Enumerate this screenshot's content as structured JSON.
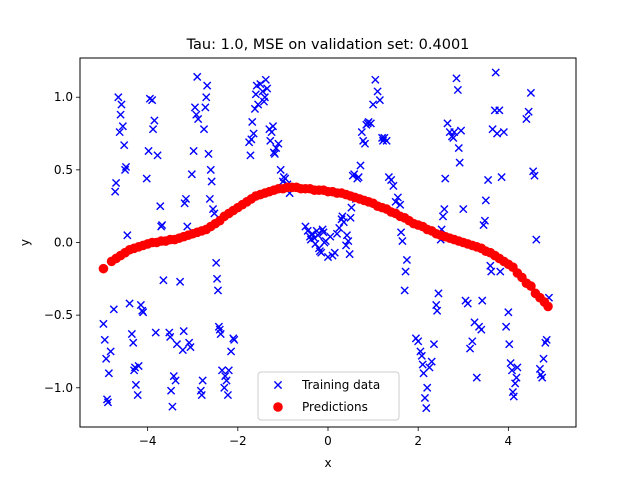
{
  "chart_data": {
    "type": "scatter",
    "title": "Tau: 1.0, MSE on validation set: 0.4001",
    "xlabel": "x",
    "ylabel": "y",
    "xlim": [
      -5.5,
      5.5
    ],
    "ylim": [
      -1.27,
      1.27
    ],
    "xticks": [
      -4,
      -2,
      0,
      2,
      4
    ],
    "xtick_labels": [
      "−4",
      "−2",
      "0",
      "2",
      "4"
    ],
    "yticks": [
      -1.0,
      -0.5,
      0.0,
      0.5,
      1.0
    ],
    "ytick_labels": [
      "−1.0",
      "−0.5",
      "0.0",
      "0.5",
      "1.0"
    ],
    "grid": false,
    "legend_position": "lower-center",
    "series": [
      {
        "name": "Training data",
        "marker": "x",
        "color": "#0000ff",
        "points": [
          [
            -4.98,
            -0.56
          ],
          [
            -4.95,
            -0.67
          ],
          [
            -4.92,
            -0.8
          ],
          [
            -4.9,
            -1.08
          ],
          [
            -4.88,
            -1.1
          ],
          [
            -4.86,
            -0.9
          ],
          [
            -4.82,
            -0.75
          ],
          [
            -4.75,
            -0.46
          ],
          [
            -4.72,
            0.35
          ],
          [
            -4.7,
            0.41
          ],
          [
            -4.65,
            1.0
          ],
          [
            -4.62,
            0.76
          ],
          [
            -4.6,
            0.88
          ],
          [
            -4.58,
            0.95
          ],
          [
            -4.55,
            0.8
          ],
          [
            -4.52,
            0.67
          ],
          [
            -4.5,
            0.5
          ],
          [
            -4.48,
            0.52
          ],
          [
            -4.45,
            0.05
          ],
          [
            -4.4,
            -0.42
          ],
          [
            -4.35,
            -0.63
          ],
          [
            -4.32,
            -0.69
          ],
          [
            -4.3,
            -0.88
          ],
          [
            -4.28,
            -0.86
          ],
          [
            -4.26,
            -0.98
          ],
          [
            -4.22,
            -1.05
          ],
          [
            -4.2,
            -0.85
          ],
          [
            -4.15,
            -0.43
          ],
          [
            -4.12,
            -0.47
          ],
          [
            -4.1,
            -0.48
          ],
          [
            -4.02,
            0.44
          ],
          [
            -3.98,
            0.63
          ],
          [
            -3.95,
            0.99
          ],
          [
            -3.9,
            0.98
          ],
          [
            -3.88,
            0.78
          ],
          [
            -3.85,
            0.84
          ],
          [
            -3.82,
            -0.62
          ],
          [
            -3.78,
            0.6
          ],
          [
            -3.72,
            0.25
          ],
          [
            -3.7,
            0.11
          ],
          [
            -3.68,
            0.12
          ],
          [
            -3.65,
            -0.26
          ],
          [
            -3.52,
            -0.62
          ],
          [
            -3.5,
            -0.65
          ],
          [
            -3.48,
            -1.02
          ],
          [
            -3.45,
            -1.13
          ],
          [
            -3.42,
            -0.92
          ],
          [
            -3.38,
            -0.95
          ],
          [
            -3.35,
            -0.7
          ],
          [
            -3.28,
            -0.27
          ],
          [
            -3.22,
            -0.74
          ],
          [
            -3.2,
            -0.61
          ],
          [
            -3.18,
            0.27
          ],
          [
            -3.15,
            0.3
          ],
          [
            -3.12,
            0.11
          ],
          [
            -3.08,
            -0.69
          ],
          [
            -3.05,
            -0.72
          ],
          [
            -3.02,
            0.47
          ],
          [
            -2.98,
            0.63
          ],
          [
            -2.95,
            0.93
          ],
          [
            -2.92,
            0.88
          ],
          [
            -2.9,
            1.14
          ],
          [
            -2.88,
            0.85
          ],
          [
            -2.82,
            -1.02
          ],
          [
            -2.8,
            -1.05
          ],
          [
            -2.78,
            -0.95
          ],
          [
            -2.75,
            0.78
          ],
          [
            -2.72,
            0.93
          ],
          [
            -2.7,
            1.0
          ],
          [
            -2.68,
            1.08
          ],
          [
            -2.65,
            0.61
          ],
          [
            -2.62,
            0.3
          ],
          [
            -2.6,
            0.5
          ],
          [
            -2.58,
            0.42
          ],
          [
            -2.55,
            0.23
          ],
          [
            -2.52,
            0.2
          ],
          [
            -2.48,
            -0.14
          ],
          [
            -2.46,
            -0.25
          ],
          [
            -2.44,
            -0.33
          ],
          [
            -2.42,
            -0.58
          ],
          [
            -2.4,
            -0.6
          ],
          [
            -2.38,
            -0.63
          ],
          [
            -2.35,
            -0.88
          ],
          [
            -2.3,
            -1.0
          ],
          [
            -2.28,
            -0.92
          ],
          [
            -2.25,
            -0.95
          ],
          [
            -2.22,
            -1.05
          ],
          [
            -2.2,
            -0.88
          ],
          [
            -2.15,
            -0.75
          ],
          [
            -2.1,
            -0.66
          ],
          [
            -2.08,
            -0.67
          ],
          [
            -1.75,
            0.69
          ],
          [
            -1.72,
            0.6
          ],
          [
            -1.7,
            0.71
          ],
          [
            -1.68,
            0.83
          ],
          [
            -1.65,
            0.75
          ],
          [
            -1.62,
            0.92
          ],
          [
            -1.6,
            1.02
          ],
          [
            -1.58,
            1.08
          ],
          [
            -1.55,
            0.95
          ],
          [
            -1.5,
            1.09
          ],
          [
            -1.45,
            1.04
          ],
          [
            -1.42,
            0.97
          ],
          [
            -1.4,
            1.0
          ],
          [
            -1.38,
            1.12
          ],
          [
            -1.35,
            1.06
          ],
          [
            -1.3,
            0.78
          ],
          [
            -1.28,
            0.7
          ],
          [
            -1.25,
            0.76
          ],
          [
            -1.22,
            0.8
          ],
          [
            -1.2,
            0.62
          ],
          [
            -1.18,
            0.61
          ],
          [
            -1.15,
            0.65
          ],
          [
            -1.1,
            0.68
          ],
          [
            -1.05,
            0.5
          ],
          [
            -1.0,
            0.42
          ],
          [
            -0.98,
            0.45
          ],
          [
            -0.95,
            0.44
          ],
          [
            -0.9,
            0.4
          ],
          [
            -0.85,
            0.34
          ],
          [
            -0.5,
            0.11
          ],
          [
            -0.45,
            0.08
          ],
          [
            -0.4,
            0.04
          ],
          [
            -0.38,
            0.02
          ],
          [
            -0.35,
            0.06
          ],
          [
            -0.3,
            0.03
          ],
          [
            -0.28,
            -0.01
          ],
          [
            -0.25,
            0.08
          ],
          [
            -0.22,
            0.05
          ],
          [
            -0.2,
            -0.04
          ],
          [
            -0.18,
            -0.06
          ],
          [
            -0.15,
            -0.07
          ],
          [
            -0.12,
            0.09
          ],
          [
            -0.1,
            0.07
          ],
          [
            -0.08,
            0.0
          ],
          [
            -0.05,
            0.01
          ],
          [
            0.0,
            -0.1
          ],
          [
            0.05,
            0.04
          ],
          [
            0.1,
            -0.09
          ],
          [
            0.15,
            -0.07
          ],
          [
            0.2,
            0.06
          ],
          [
            0.25,
            0.1
          ],
          [
            0.3,
            0.16
          ],
          [
            0.32,
            0.18
          ],
          [
            0.35,
            0.14
          ],
          [
            0.4,
            -0.02
          ],
          [
            0.42,
            0.05
          ],
          [
            0.45,
            0.01
          ],
          [
            0.48,
            -0.08
          ],
          [
            0.5,
            0.17
          ],
          [
            0.52,
            0.24
          ],
          [
            0.55,
            0.46
          ],
          [
            0.58,
            0.47
          ],
          [
            0.62,
            0.3
          ],
          [
            0.65,
            0.44
          ],
          [
            0.68,
            0.45
          ],
          [
            0.72,
            0.53
          ],
          [
            0.75,
            0.76
          ],
          [
            0.78,
            0.7
          ],
          [
            0.82,
            0.68
          ],
          [
            0.85,
            0.81
          ],
          [
            0.88,
            0.82
          ],
          [
            0.9,
            0.83
          ],
          [
            0.95,
            0.82
          ],
          [
            1.0,
            0.95
          ],
          [
            1.05,
            1.12
          ],
          [
            1.1,
            1.04
          ],
          [
            1.15,
            0.98
          ],
          [
            1.2,
            0.72
          ],
          [
            1.22,
            0.7
          ],
          [
            1.25,
            0.72
          ],
          [
            1.3,
            0.7
          ],
          [
            1.35,
            0.45
          ],
          [
            1.4,
            0.43
          ],
          [
            1.45,
            0.39
          ],
          [
            1.5,
            0.28
          ],
          [
            1.55,
            0.31
          ],
          [
            1.6,
            0.26
          ],
          [
            1.62,
            0.07
          ],
          [
            1.65,
            0.01
          ],
          [
            1.7,
            -0.33
          ],
          [
            1.72,
            -0.2
          ],
          [
            1.75,
            -0.12
          ],
          [
            1.95,
            -0.66
          ],
          [
            2.0,
            -0.68
          ],
          [
            2.05,
            -0.75
          ],
          [
            2.08,
            -0.78
          ],
          [
            2.1,
            -0.84
          ],
          [
            2.12,
            -0.9
          ],
          [
            2.15,
            -1.07
          ],
          [
            2.18,
            -1.14
          ],
          [
            2.2,
            -1.0
          ],
          [
            2.25,
            -0.86
          ],
          [
            2.3,
            -0.82
          ],
          [
            2.35,
            -0.7
          ],
          [
            2.4,
            -0.43
          ],
          [
            2.42,
            -0.47
          ],
          [
            2.45,
            -0.35
          ],
          [
            2.5,
            0.02
          ],
          [
            2.52,
            0.09
          ],
          [
            2.55,
            0.18
          ],
          [
            2.58,
            0.23
          ],
          [
            2.6,
            0.44
          ],
          [
            2.65,
            0.82
          ],
          [
            2.7,
            0.76
          ],
          [
            2.75,
            0.73
          ],
          [
            2.78,
            0.72
          ],
          [
            2.8,
            0.76
          ],
          [
            2.85,
            1.13
          ],
          [
            2.88,
            1.05
          ],
          [
            2.9,
            0.65
          ],
          [
            2.92,
            0.55
          ],
          [
            2.95,
            0.77
          ],
          [
            3.0,
            0.23
          ],
          [
            3.05,
            -0.4
          ],
          [
            3.1,
            -0.42
          ],
          [
            3.15,
            -0.73
          ],
          [
            3.2,
            -0.68
          ],
          [
            3.25,
            -0.55
          ],
          [
            3.3,
            -0.93
          ],
          [
            3.35,
            -0.58
          ],
          [
            3.4,
            -0.6
          ],
          [
            3.42,
            -0.4
          ],
          [
            3.45,
            0.12
          ],
          [
            3.48,
            0.15
          ],
          [
            3.5,
            0.29
          ],
          [
            3.55,
            0.43
          ],
          [
            3.6,
            -0.16
          ],
          [
            3.62,
            -0.2
          ],
          [
            3.65,
            0.78
          ],
          [
            3.7,
            0.91
          ],
          [
            3.72,
            1.17
          ],
          [
            3.75,
            0.75
          ],
          [
            3.8,
            0.91
          ],
          [
            3.82,
            -0.2
          ],
          [
            3.85,
            0.45
          ],
          [
            3.9,
            0.76
          ],
          [
            3.95,
            -0.58
          ],
          [
            4.0,
            -0.48
          ],
          [
            4.02,
            -0.7
          ],
          [
            4.05,
            -0.83
          ],
          [
            4.08,
            -0.88
          ],
          [
            4.1,
            -1.03
          ],
          [
            4.12,
            -1.06
          ],
          [
            4.15,
            -0.97
          ],
          [
            4.18,
            -0.93
          ],
          [
            4.2,
            -0.86
          ],
          [
            4.4,
            0.85
          ],
          [
            4.45,
            0.9
          ],
          [
            4.5,
            1.03
          ],
          [
            4.55,
            0.49
          ],
          [
            4.58,
            0.46
          ],
          [
            4.62,
            0.02
          ],
          [
            4.7,
            -0.87
          ],
          [
            4.72,
            -0.91
          ],
          [
            4.75,
            -0.93
          ],
          [
            4.78,
            -0.8
          ],
          [
            4.82,
            -0.69
          ],
          [
            4.85,
            -0.67
          ],
          [
            4.9,
            -0.38
          ]
        ]
      },
      {
        "name": "Predictions",
        "marker": "o",
        "color": "#ff0000",
        "x": [
          -4.98,
          -4.8,
          -4.7,
          -4.6,
          -4.5,
          -4.4,
          -4.3,
          -4.2,
          -4.1,
          -4.0,
          -3.9,
          -3.8,
          -3.7,
          -3.6,
          -3.5,
          -3.4,
          -3.3,
          -3.2,
          -3.1,
          -3.0,
          -2.9,
          -2.8,
          -2.7,
          -2.6,
          -2.5,
          -2.4,
          -2.3,
          -2.2,
          -2.1,
          -2.0,
          -1.9,
          -1.8,
          -1.7,
          -1.6,
          -1.5,
          -1.4,
          -1.3,
          -1.2,
          -1.1,
          -1.0,
          -0.9,
          -0.8,
          -0.7,
          -0.6,
          -0.5,
          -0.4,
          -0.3,
          -0.2,
          -0.1,
          0.0,
          0.1,
          0.2,
          0.3,
          0.4,
          0.5,
          0.6,
          0.7,
          0.8,
          0.9,
          1.0,
          1.1,
          1.2,
          1.3,
          1.4,
          1.5,
          1.6,
          1.7,
          1.8,
          1.9,
          2.0,
          2.1,
          2.2,
          2.3,
          2.4,
          2.5,
          2.6,
          2.7,
          2.8,
          2.9,
          3.0,
          3.1,
          3.2,
          3.3,
          3.4,
          3.5,
          3.6,
          3.7,
          3.8,
          3.9,
          4.0,
          4.1,
          4.2,
          4.3,
          4.4,
          4.5,
          4.6,
          4.7,
          4.8,
          4.88
        ],
        "y": [
          -0.18,
          -0.13,
          -0.11,
          -0.09,
          -0.07,
          -0.05,
          -0.04,
          -0.03,
          -0.02,
          -0.01,
          0.0,
          0.0,
          0.01,
          0.01,
          0.02,
          0.02,
          0.03,
          0.04,
          0.05,
          0.06,
          0.07,
          0.08,
          0.09,
          0.11,
          0.13,
          0.15,
          0.18,
          0.2,
          0.22,
          0.24,
          0.26,
          0.28,
          0.3,
          0.32,
          0.33,
          0.34,
          0.35,
          0.36,
          0.37,
          0.37,
          0.38,
          0.38,
          0.38,
          0.37,
          0.37,
          0.37,
          0.36,
          0.36,
          0.36,
          0.35,
          0.35,
          0.34,
          0.34,
          0.33,
          0.32,
          0.31,
          0.3,
          0.29,
          0.28,
          0.27,
          0.25,
          0.24,
          0.23,
          0.21,
          0.2,
          0.18,
          0.17,
          0.15,
          0.13,
          0.12,
          0.11,
          0.09,
          0.08,
          0.06,
          0.05,
          0.04,
          0.03,
          0.02,
          0.01,
          0.0,
          -0.01,
          -0.02,
          -0.03,
          -0.04,
          -0.06,
          -0.07,
          -0.09,
          -0.11,
          -0.13,
          -0.15,
          -0.17,
          -0.21,
          -0.24,
          -0.28,
          -0.3,
          -0.35,
          -0.38,
          -0.41,
          -0.44
        ]
      }
    ]
  }
}
